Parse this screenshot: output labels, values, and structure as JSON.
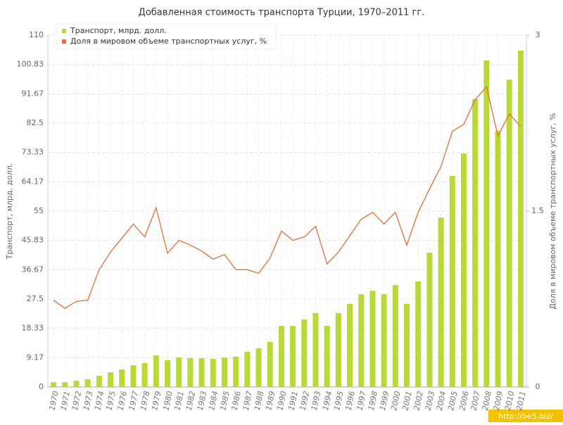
{
  "chart_data": {
    "type": "bar_line",
    "title": "Добавленная стоимость транспорта Турции, 1970–2011 гг.",
    "y_label": "Транспорт, млрд. долл.",
    "y2_label": "Доля в мировом объеме транспортных услуг, %",
    "categories": [
      "1970",
      "1971",
      "1972",
      "1973",
      "1974",
      "1975",
      "1976",
      "1977",
      "1978",
      "1979",
      "1980",
      "1981",
      "1982",
      "1983",
      "1984",
      "1985",
      "1986",
      "1987",
      "1988",
      "1989",
      "1990",
      "1991",
      "1992",
      "1993",
      "1994",
      "1995",
      "1996",
      "1997",
      "1998",
      "1999",
      "2000",
      "2001",
      "2002",
      "2003",
      "2004",
      "2005",
      "2006",
      "2007",
      "2008",
      "2009",
      "2010",
      "2011"
    ],
    "series": [
      {
        "name": "Транспорт, млрд. долл.",
        "color": "#b8d936",
        "kind": "bar",
        "values": [
          1.5,
          1.5,
          2.0,
          2.4,
          3.5,
          4.6,
          5.5,
          6.8,
          7.5,
          9.9,
          8.4,
          9.2,
          9.0,
          9.0,
          8.8,
          9.2,
          9.5,
          11.0,
          12.1,
          14.1,
          19.1,
          19.1,
          21.1,
          23.1,
          19.1,
          23.1,
          26.0,
          29.0,
          30.1,
          29.0,
          31.9,
          26.0,
          33.0,
          42.0,
          53.0,
          66.0,
          73.0,
          90.0,
          102.1,
          80.1,
          96.1,
          105.2
        ]
      },
      {
        "name": "Доля в мировом объеме транспортных услуг, %",
        "color": "#e0703c",
        "kind": "line",
        "axis": "y2",
        "values": [
          0.74,
          0.67,
          0.73,
          0.74,
          1.0,
          1.15,
          1.27,
          1.39,
          1.28,
          1.53,
          1.14,
          1.25,
          1.21,
          1.16,
          1.09,
          1.13,
          1.0,
          1.0,
          0.97,
          1.1,
          1.33,
          1.25,
          1.28,
          1.37,
          1.05,
          1.15,
          1.29,
          1.43,
          1.49,
          1.39,
          1.49,
          1.21,
          1.49,
          1.69,
          1.88,
          2.18,
          2.24,
          2.45,
          2.56,
          2.14,
          2.33,
          2.22
        ]
      }
    ],
    "ylim": [
      0,
      110
    ],
    "yticks": [
      0,
      9.17,
      18.33,
      27.5,
      36.67,
      45.83,
      55,
      64.17,
      73.33,
      82.5,
      91.67,
      100.83,
      110
    ],
    "y2lim": [
      0,
      3
    ],
    "y2ticks": [
      0,
      1.5,
      3
    ],
    "grid": true,
    "legend": "top-left"
  },
  "watermark": "http://be5.biz/"
}
